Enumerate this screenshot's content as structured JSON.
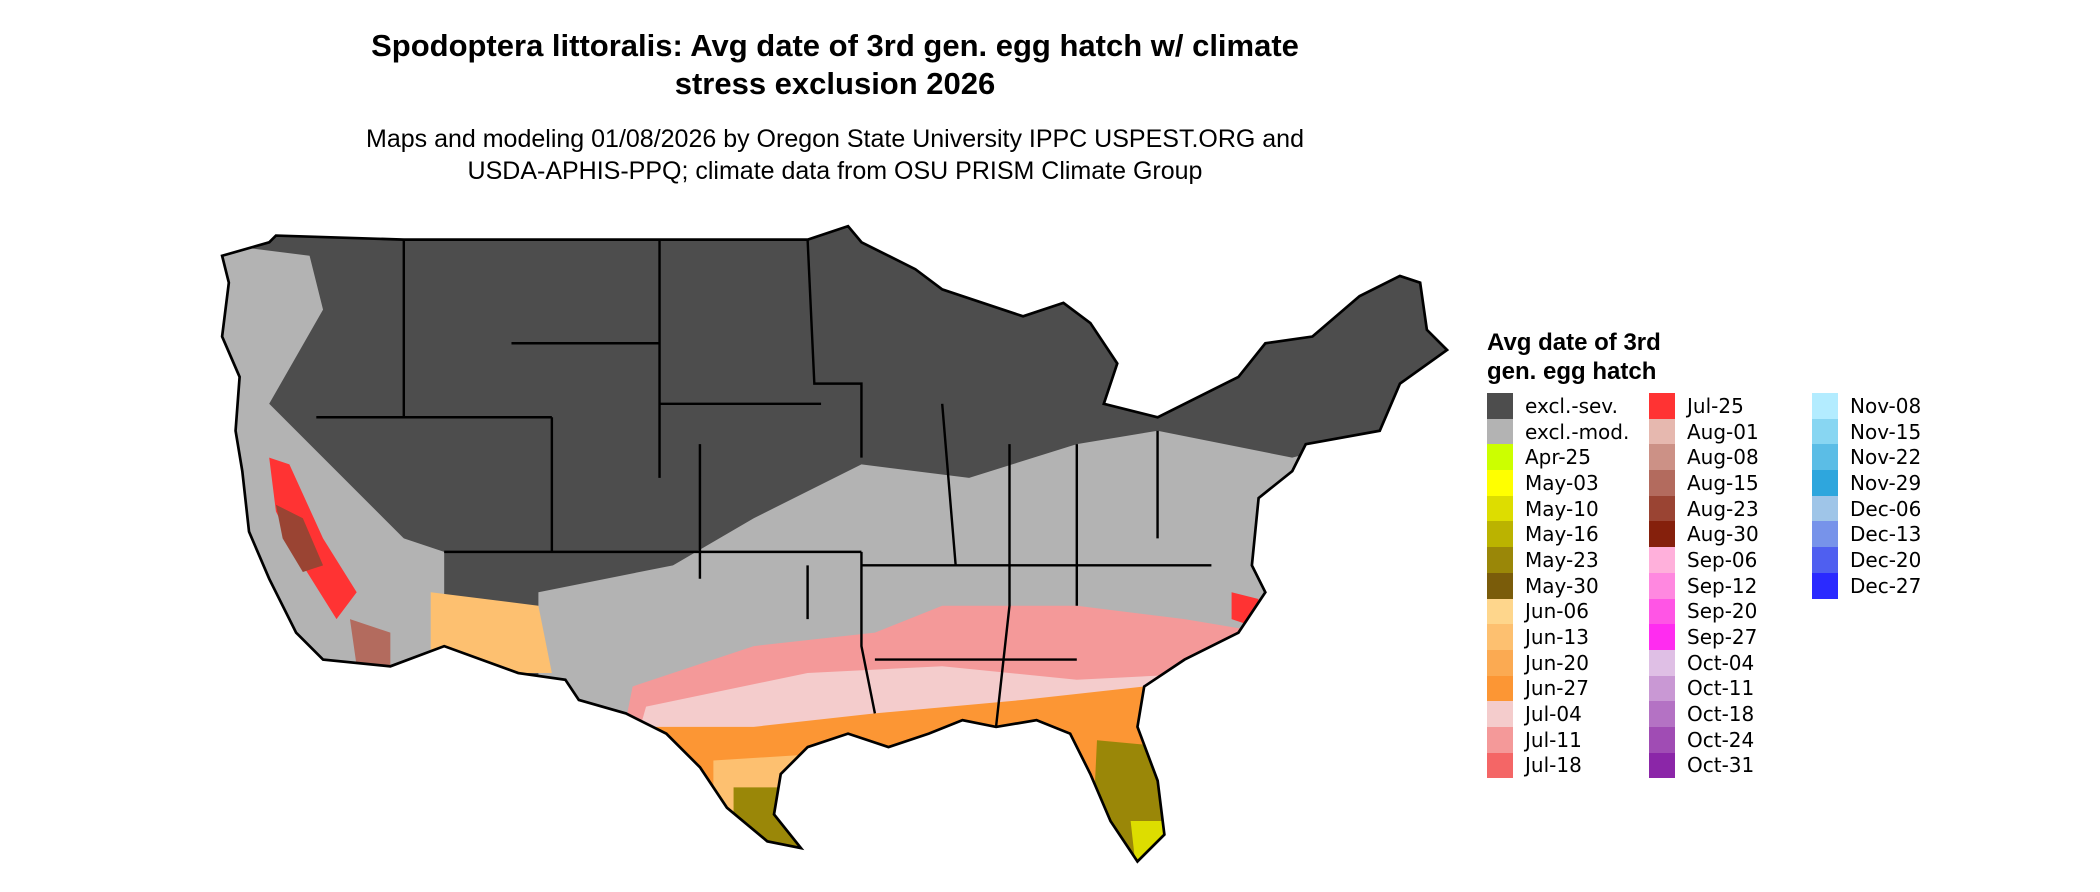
{
  "title": {
    "line1": "Spodoptera littoralis: Avg date of 3rd gen. egg hatch w/ climate",
    "line2": "stress exclusion 2026"
  },
  "subtitle": {
    "line1": "Maps and modeling 01/08/2026 by Oregon State University IPPC USPEST.ORG and",
    "line2": "USDA-APHIS-PPQ; climate data from OSU PRISM Climate Group"
  },
  "map": {
    "region": "contiguous United States with state borders",
    "colors": {
      "excluded_severe": "#4d4d4d",
      "excluded_moderate": "#b3b3b3"
    }
  },
  "legend": {
    "title_line1": "Avg date of 3rd",
    "title_line2": "gen. egg hatch",
    "columns": [
      [
        {
          "label": "excl.-sev.",
          "color": "#4d4d4d"
        },
        {
          "label": "excl.-mod.",
          "color": "#b3b3b3"
        },
        {
          "label": "Apr-25",
          "color": "#ccff00"
        },
        {
          "label": "May-03",
          "color": "#ffff00"
        },
        {
          "label": "May-10",
          "color": "#dddd00"
        },
        {
          "label": "May-16",
          "color": "#bbb300"
        },
        {
          "label": "May-23",
          "color": "#9a8708"
        },
        {
          "label": "May-30",
          "color": "#7a5c0a"
        },
        {
          "label": "Jun-06",
          "color": "#fed68c"
        },
        {
          "label": "Jun-13",
          "color": "#fdc070"
        },
        {
          "label": "Jun-20",
          "color": "#fbaa52"
        },
        {
          "label": "Jun-27",
          "color": "#fc9634"
        },
        {
          "label": "Jul-04",
          "color": "#f4cccc"
        },
        {
          "label": "Jul-11",
          "color": "#f49999"
        },
        {
          "label": "Jul-18",
          "color": "#f46666"
        }
      ],
      [
        {
          "label": "Jul-25",
          "color": "#ff3333"
        },
        {
          "label": "Aug-01",
          "color": "#e6b8af"
        },
        {
          "label": "Aug-08",
          "color": "#cc9186"
        },
        {
          "label": "Aug-15",
          "color": "#b36b5e"
        },
        {
          "label": "Aug-23",
          "color": "#9a4433"
        },
        {
          "label": "Aug-30",
          "color": "#85200c"
        },
        {
          "label": "Sep-06",
          "color": "#ffb0db"
        },
        {
          "label": "Sep-12",
          "color": "#ff88e0"
        },
        {
          "label": "Sep-20",
          "color": "#ff55e5"
        },
        {
          "label": "Sep-27",
          "color": "#ff2cf0"
        },
        {
          "label": "Oct-04",
          "color": "#dfbfe5"
        },
        {
          "label": "Oct-11",
          "color": "#c998d4"
        },
        {
          "label": "Oct-18",
          "color": "#b472c4"
        },
        {
          "label": "Oct-24",
          "color": "#a04cb4"
        },
        {
          "label": "Oct-31",
          "color": "#8b26a8"
        }
      ],
      [
        {
          "label": "Nov-08",
          "color": "#b3ecff"
        },
        {
          "label": "Nov-15",
          "color": "#88d6f2"
        },
        {
          "label": "Nov-22",
          "color": "#5bbde6"
        },
        {
          "label": "Nov-29",
          "color": "#2ea6dd"
        },
        {
          "label": "Dec-06",
          "color": "#9fc5e8"
        },
        {
          "label": "Dec-13",
          "color": "#7793ea"
        },
        {
          "label": "Dec-20",
          "color": "#4f5ff0"
        },
        {
          "label": "Dec-27",
          "color": "#2a2aff"
        }
      ]
    ]
  }
}
